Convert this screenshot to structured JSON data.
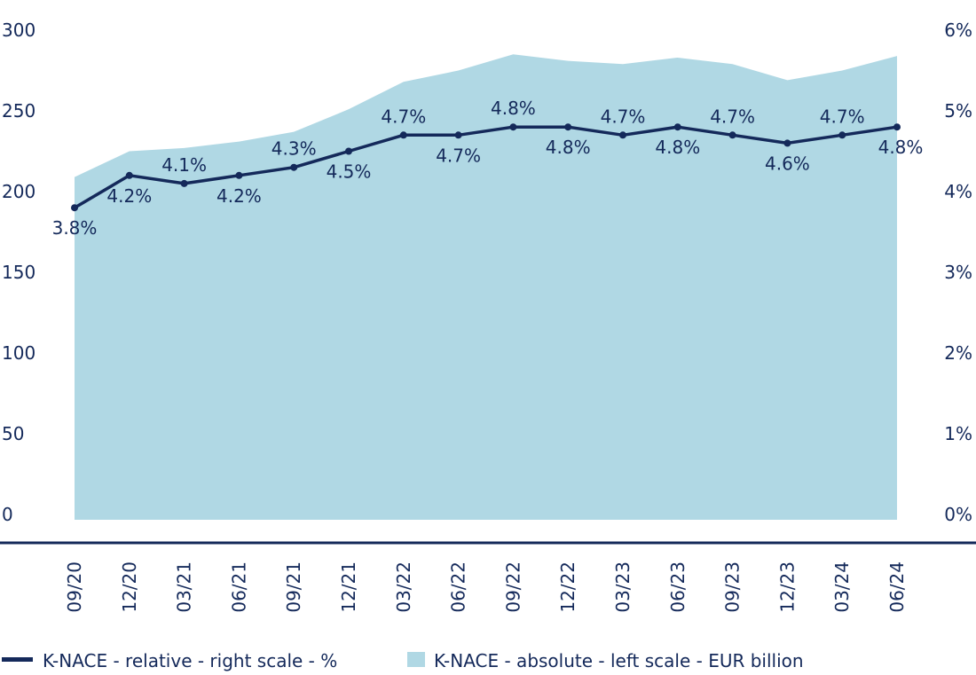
{
  "chart_data": {
    "type": "area+line",
    "title": "",
    "categories": [
      "09/20",
      "12/20",
      "03/21",
      "06/21",
      "09/21",
      "12/21",
      "03/22",
      "06/22",
      "09/22",
      "12/22",
      "03/23",
      "06/23",
      "09/23",
      "12/23",
      "03/24",
      "06/24"
    ],
    "series": [
      {
        "name": "K-NACE - absolute - left scale - EUR billion",
        "type": "area",
        "axis": "left",
        "color": "#b0d8e4",
        "values": [
          209,
          225,
          227,
          231,
          237,
          251,
          268,
          275,
          285,
          281,
          279,
          283,
          279,
          269,
          275,
          284
        ]
      },
      {
        "name": "K-NACE - relative - right scale - %",
        "type": "line",
        "axis": "right",
        "color": "#14295a",
        "values": [
          3.8,
          4.2,
          4.1,
          4.2,
          4.3,
          4.5,
          4.7,
          4.7,
          4.8,
          4.8,
          4.7,
          4.8,
          4.7,
          4.6,
          4.7,
          4.8
        ],
        "labels": [
          "3.8%",
          "4.2%",
          "4.1%",
          "4.2%",
          "4.3%",
          "4.5%",
          "4.7%",
          "4.7%",
          "4.8%",
          "4.8%",
          "4.7%",
          "4.8%",
          "4.7%",
          "4.6%",
          "4.7%",
          "4.8%"
        ]
      }
    ],
    "left_axis": {
      "ylim": [
        0,
        300
      ],
      "ticks": [
        "0",
        "50",
        "100",
        "150",
        "200",
        "250",
        "300"
      ]
    },
    "right_axis": {
      "ylim": [
        0,
        6
      ],
      "ticks": [
        "0%",
        "1%",
        "2%",
        "3%",
        "4%",
        "5%",
        "6%"
      ]
    },
    "grid": false,
    "legend": "bottom"
  }
}
